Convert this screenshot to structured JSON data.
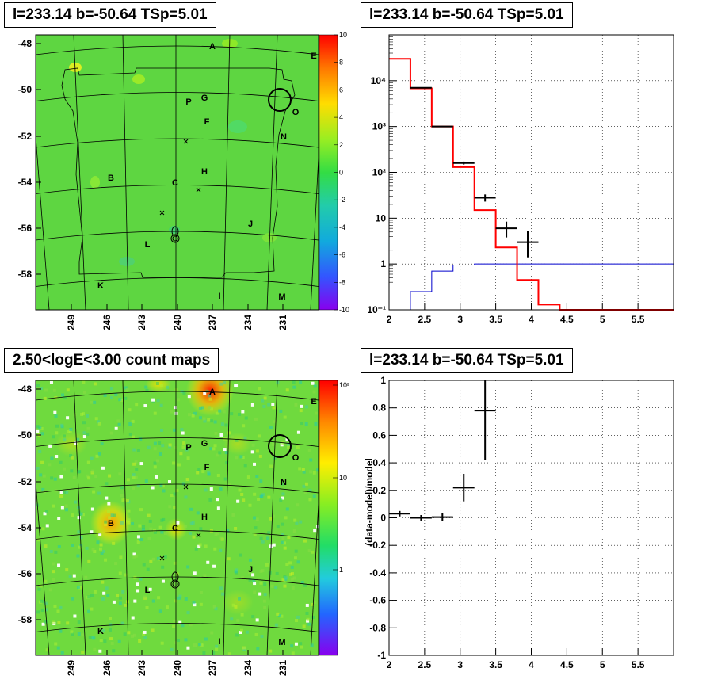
{
  "titles": {
    "tl": "l=233.14 b=-50.64 TSp=5.01",
    "tr": "l=233.14 b=-50.64 TSp=5.01",
    "bl": "2.50<logE<3.00 count maps",
    "br": "l=233.14 b=-50.64 TSp=5.01"
  },
  "colors": {
    "map_bg": "#5ed641",
    "model_line": "#ff0000",
    "bkg_line": "#0000cc",
    "frame": "#000000"
  },
  "maps": {
    "b_ticks": [
      "-48",
      "-50",
      "-52",
      "-54",
      "-56",
      "-58"
    ],
    "l_ticks": [
      "249",
      "246",
      "243",
      "240",
      "237",
      "234",
      "231"
    ],
    "source_labels": [
      "A",
      "E",
      "P",
      "G",
      "O",
      "F",
      "N",
      "B",
      "H",
      "C",
      "J",
      "L",
      "K",
      "I",
      "M"
    ],
    "resid_colorbar_ticks": [
      "10",
      "8",
      "6",
      "4",
      "2",
      "0",
      "-2",
      "-4",
      "-6",
      "-8",
      "-10"
    ],
    "count_colorbar_ticks": [
      "10²",
      "10",
      "1"
    ]
  },
  "chart_data": [
    {
      "type": "line",
      "title": "l=233.14 b=-50.64 TSp=5.01",
      "xlabel": "",
      "ylabel": "",
      "xlim": [
        2,
        6
      ],
      "ylim": [
        0.1,
        100000
      ],
      "ylog": true,
      "grid": true,
      "x_ticks": [
        "2",
        "2.5",
        "3",
        "3.5",
        "4",
        "4.5",
        "5",
        "5.5"
      ],
      "y_ticks": [
        "10⁻¹",
        "1",
        "10",
        "10²",
        "10³",
        "10⁴"
      ],
      "series": [
        {
          "kind": "model_step",
          "x_edges": [
            2.0,
            2.3,
            2.6,
            2.9,
            3.2,
            3.5,
            3.8,
            4.1,
            4.4,
            6.0
          ],
          "values": [
            30000,
            6800,
            1000,
            130,
            15,
            2.3,
            0.45,
            0.13,
            0.1
          ]
        },
        {
          "kind": "background_step",
          "x_edges": [
            2.0,
            2.3,
            2.6,
            2.9,
            3.2,
            3.5,
            6.0
          ],
          "values": [
            0.1,
            0.25,
            0.7,
            0.95,
            1.0,
            1.0
          ]
        },
        {
          "kind": "data_points",
          "x": [
            2.45,
            2.75,
            3.05,
            3.35,
            3.65,
            3.95
          ],
          "xerr": [
            0.15,
            0.15,
            0.15,
            0.15,
            0.15,
            0.15
          ],
          "y": [
            7000,
            1000,
            160,
            28,
            6,
            3
          ],
          "ylo": [
            6900,
            970,
            148,
            23,
            3.8,
            1.4
          ],
          "yhi": [
            7100,
            1030,
            172,
            33,
            8.4,
            5.2
          ]
        }
      ]
    },
    {
      "type": "scatter",
      "title": "l=233.14 b=-50.64 TSp=5.01",
      "xlabel": "",
      "ylabel": "(data-model)/model",
      "xlim": [
        2,
        6
      ],
      "ylim": [
        -1,
        1
      ],
      "grid": true,
      "x_ticks": [
        "2",
        "2.5",
        "3",
        "3.5",
        "4",
        "4.5",
        "5",
        "5.5"
      ],
      "y_ticks": [
        "1",
        "0.8",
        "0.6",
        "0.4",
        "0.2",
        "0",
        "-0.2",
        "-0.4",
        "-0.6",
        "-0.8",
        "-1"
      ],
      "series": [
        {
          "kind": "residual_points",
          "x": [
            2.15,
            2.45,
            2.75,
            3.05,
            3.35
          ],
          "xerr": [
            0.15,
            0.15,
            0.15,
            0.15,
            0.15
          ],
          "y": [
            0.03,
            0.0,
            0.005,
            0.22,
            0.78
          ],
          "ylo": [
            0.01,
            -0.02,
            -0.025,
            0.12,
            0.42
          ],
          "yhi": [
            0.05,
            0.02,
            0.035,
            0.32,
            1.0
          ]
        }
      ]
    }
  ]
}
